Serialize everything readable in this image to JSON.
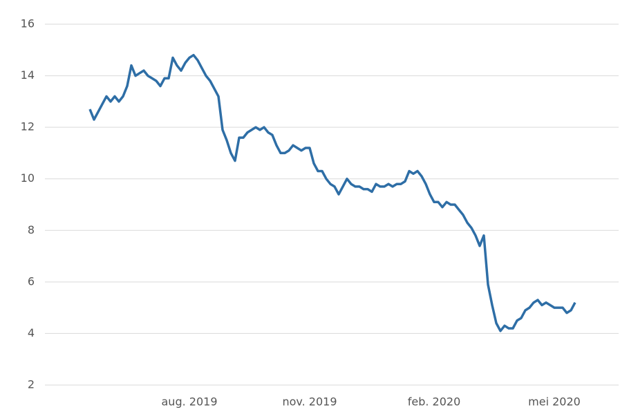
{
  "chart_data": {
    "type": "line",
    "categories": [
      null,
      null,
      null,
      null,
      null,
      null,
      null,
      null,
      null,
      null,
      null,
      null,
      null,
      null,
      null,
      null,
      null,
      null,
      null,
      null,
      null,
      null,
      null,
      null,
      "aug. 2019",
      null,
      null,
      null,
      null,
      null,
      null,
      null,
      null,
      null,
      null,
      null,
      null,
      null,
      null,
      null,
      null,
      null,
      null,
      null,
      null,
      null,
      null,
      null,
      null,
      null,
      null,
      null,
      null,
      "nov. 2019",
      null,
      null,
      null,
      null,
      null,
      null,
      null,
      null,
      null,
      null,
      null,
      null,
      null,
      null,
      null,
      null,
      null,
      null,
      null,
      null,
      null,
      null,
      null,
      null,
      null,
      null,
      null,
      null,
      null,
      "feb. 2020",
      null,
      null,
      null,
      null,
      null,
      null,
      null,
      null,
      null,
      null,
      null,
      null,
      null,
      null,
      null,
      null,
      null,
      null,
      null,
      null,
      null,
      null,
      null,
      null,
      null,
      null,
      null,
      null,
      "mei 2020",
      null,
      null,
      null,
      null,
      null
    ],
    "values": [
      12.7,
      12.3,
      12.6,
      12.9,
      13.2,
      13.0,
      13.2,
      13.0,
      13.2,
      13.6,
      14.4,
      14.0,
      14.1,
      14.2,
      14.0,
      13.9,
      13.8,
      13.6,
      13.9,
      13.9,
      14.7,
      14.4,
      14.2,
      14.5,
      14.7,
      14.8,
      14.6,
      14.3,
      14.0,
      13.8,
      13.5,
      13.2,
      11.9,
      11.5,
      11.0,
      10.7,
      11.6,
      11.6,
      11.8,
      11.9,
      12.0,
      11.9,
      12.0,
      11.8,
      11.7,
      11.3,
      11.0,
      11.0,
      11.1,
      11.3,
      11.2,
      11.1,
      11.2,
      11.2,
      10.6,
      10.3,
      10.3,
      10.0,
      9.8,
      9.7,
      9.4,
      9.7,
      10.0,
      9.8,
      9.7,
      9.7,
      9.6,
      9.6,
      9.5,
      9.8,
      9.7,
      9.7,
      9.8,
      9.7,
      9.8,
      9.8,
      9.9,
      10.3,
      10.2,
      10.3,
      10.1,
      9.8,
      9.4,
      9.1,
      9.1,
      8.9,
      9.1,
      9.0,
      9.0,
      8.8,
      8.6,
      8.3,
      8.1,
      7.8,
      7.4,
      7.8,
      5.9,
      5.1,
      4.4,
      4.1,
      4.3,
      4.2,
      4.2,
      4.5,
      4.6,
      4.9,
      5.0,
      5.2,
      5.3,
      5.1,
      5.2,
      5.1,
      5.0,
      5.0,
      5.0,
      4.8,
      4.9,
      5.2
    ],
    "color": "#2e6ea6",
    "ylim": [
      2,
      16
    ],
    "yticks": [
      2,
      4,
      6,
      8,
      10,
      12,
      14,
      16
    ],
    "grid": true
  }
}
